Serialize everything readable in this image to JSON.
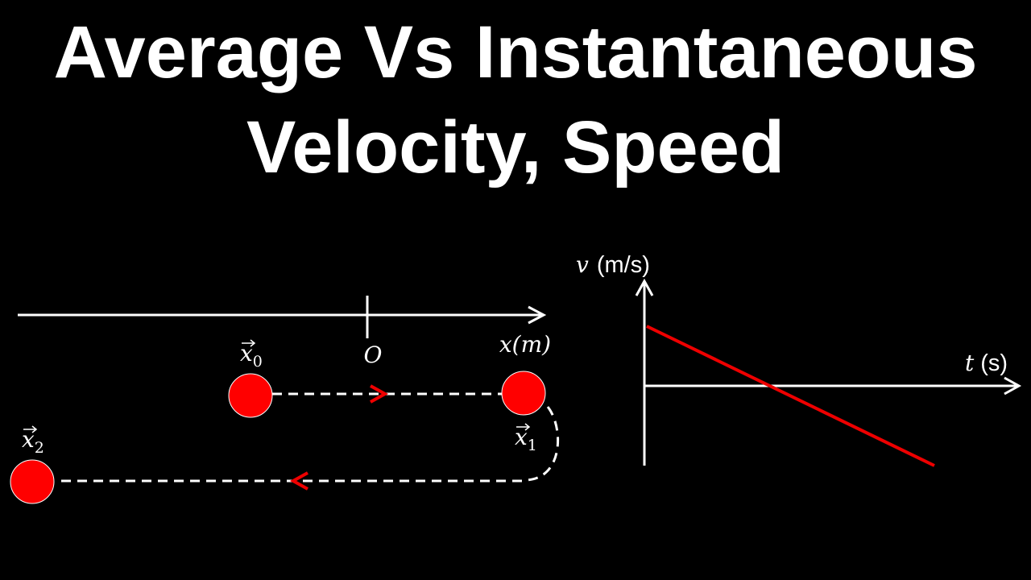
{
  "header": {
    "title_lines": [
      "Average Vs Instantaneous",
      "Velocity, Speed"
    ]
  },
  "number_line": {
    "origin_label": "O",
    "axis_label": "x(m)",
    "points": [
      {
        "symbol": "x",
        "subscript": "0"
      },
      {
        "symbol": "x",
        "subscript": "1"
      },
      {
        "symbol": "x",
        "subscript": "2"
      }
    ]
  },
  "graph": {
    "y_axis": {
      "symbol": "v",
      "unit": "(m/s)"
    },
    "x_axis": {
      "symbol": "t",
      "unit": "(s)"
    }
  }
}
